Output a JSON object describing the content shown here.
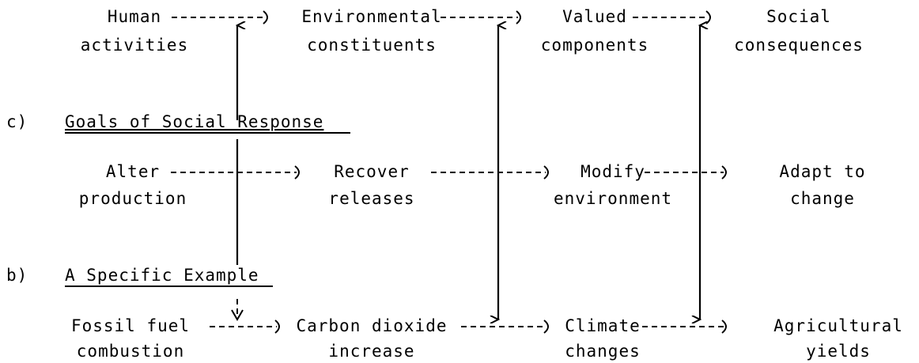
{
  "rows": [
    {
      "nodes": [
        {
          "lines": [
            "Human",
            "activities"
          ]
        },
        {
          "lines": [
            "Environmental",
            "constituents"
          ]
        },
        {
          "lines": [
            "Valued",
            "components"
          ]
        },
        {
          "lines": [
            "Social",
            "consequences"
          ]
        }
      ]
    },
    {
      "heading": {
        "letter": "c)",
        "title": "Goals of Social Response"
      },
      "nodes": [
        {
          "lines": [
            "Alter",
            "production"
          ]
        },
        {
          "lines": [
            "Recover",
            "releases"
          ]
        },
        {
          "lines": [
            "Modify",
            "environment"
          ]
        },
        {
          "lines": [
            "Adapt to",
            "change"
          ]
        }
      ]
    },
    {
      "heading": {
        "letter": "b)",
        "title": "A Specific Example"
      },
      "nodes": [
        {
          "lines": [
            "Fossil fuel",
            "combustion"
          ]
        },
        {
          "lines": [
            "Carbon dioxide",
            "increase"
          ]
        },
        {
          "lines": [
            "Climate",
            "changes"
          ]
        },
        {
          "lines": [
            "Agricultural",
            "yields"
          ]
        }
      ]
    }
  ]
}
